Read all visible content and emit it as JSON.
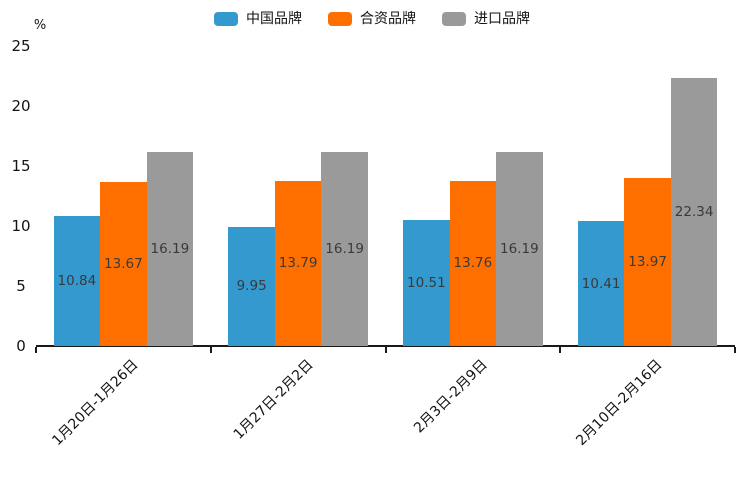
{
  "chart_data": {
    "type": "bar",
    "title": "",
    "unit_label": "%",
    "categories": [
      "1月20日-1月26日",
      "1月27日-2月2日",
      "2月3日-2月9日",
      "2月10日-2月16日"
    ],
    "series": [
      {
        "name": "中国品牌",
        "color": "#3499CE",
        "values": [
          10.84,
          9.95,
          10.51,
          10.41
        ]
      },
      {
        "name": "合资品牌",
        "color": "#FF6F00",
        "values": [
          13.67,
          13.79,
          13.76,
          13.97
        ]
      },
      {
        "name": "进口品牌",
        "color": "#9A9A9A",
        "values": [
          16.19,
          16.19,
          16.19,
          22.34
        ]
      }
    ],
    "y_axis": {
      "min": 0,
      "max": 25,
      "tick_step": 5,
      "ticks": [
        0,
        5,
        10,
        15,
        20,
        25
      ],
      "unit": "%"
    },
    "legend_position": "top-center",
    "grid": false,
    "value_labels": "inside-center",
    "x_label_rotation_deg": 45,
    "axis_color": "#1a1a1a",
    "value_label_color": "#3a3a3a"
  }
}
